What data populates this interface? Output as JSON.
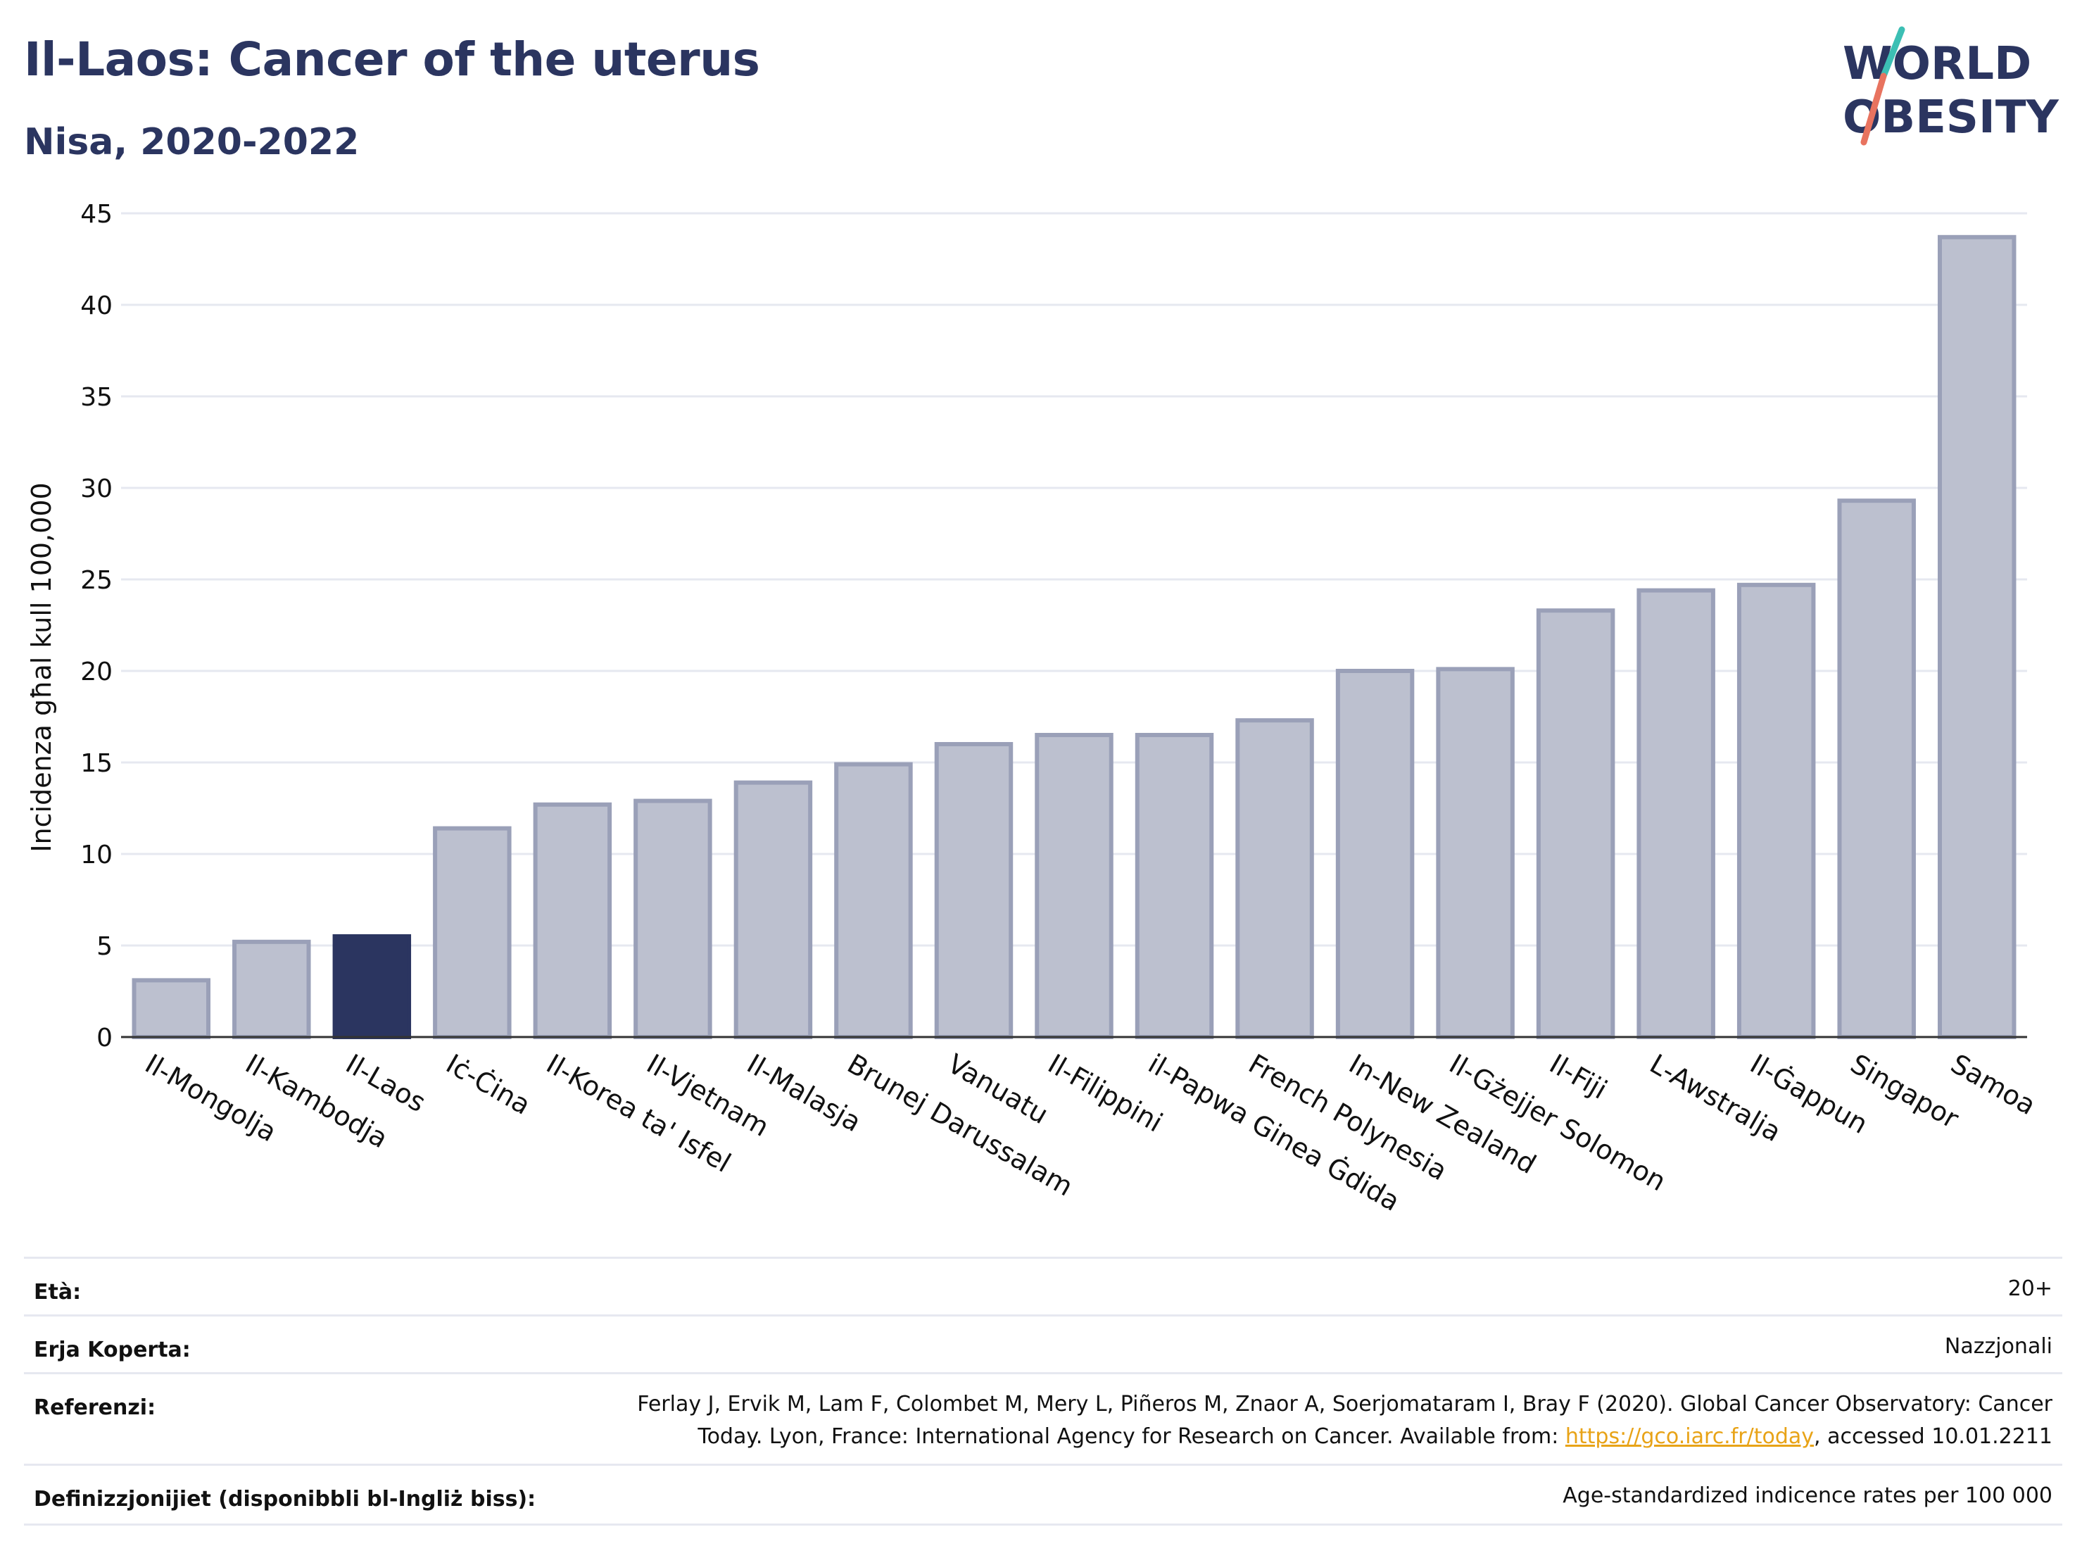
{
  "title": "Il-Laos: Cancer of the uterus",
  "subtitle": "Nisa, 2020-2022",
  "logo": {
    "line1": "WORLD",
    "line2": "OBESITY"
  },
  "colors": {
    "highlight": "#2b3560",
    "bar_fill": "#bcc0cf",
    "bar_stroke": "#9aa0b8",
    "grid": "#e6e8f0",
    "accent_teal": "#3cbfb4",
    "accent_coral": "#e8735f",
    "link": "#e8a317"
  },
  "chart_data": {
    "type": "bar",
    "ylabel": "Incidenza għal kull 100,000",
    "ylim": [
      0,
      45
    ],
    "yticks": [
      0,
      5,
      10,
      15,
      20,
      25,
      30,
      35,
      40,
      45
    ],
    "grid": true,
    "highlight": "Il-Laos",
    "categories": [
      "Il-Mongolja",
      "Il-Kambodja",
      "Il-Laos",
      "Iċ-Ċina",
      "Il-Korea ta' Isfel",
      "Il-Vjetnam",
      "Il-Malasja",
      "Brunej Darussalam",
      "Vanuatu",
      "Il-Filippini",
      "il-Papwa Ginea Ġdida",
      "French Polynesia",
      "In-New Zealand",
      "Il-Gżejjer Solomon",
      "Il-Fiji",
      "L-Awstralja",
      "Il-Ġappun",
      "Singapor",
      "Samoa"
    ],
    "values": [
      3.1,
      5.2,
      5.5,
      11.4,
      12.7,
      12.9,
      13.9,
      14.9,
      16.0,
      16.5,
      16.5,
      17.3,
      20.0,
      20.1,
      23.3,
      24.4,
      24.7,
      29.3,
      43.7
    ]
  },
  "info": {
    "age_label": "Età:",
    "age_value": "20+",
    "area_label": "Erja Koperta:",
    "area_value": "Nazzjonali",
    "ref_label": "Referenzi:",
    "ref_line1": "Ferlay J, Ervik M, Lam F, Colombet M, Mery L, Piñeros M, Znaor A, Soerjomataram I, Bray F (2020). Global Cancer Observatory: Cancer",
    "ref_line2_pre": "Today. Lyon, France: International Agency for Research on Cancer. Available from: ",
    "ref_link": "https://gco.iarc.fr/today",
    "ref_line2_post": ", accessed 10.01.2211",
    "def_label": "Definizzjonijiet (disponibbli bl-Ingliż biss):",
    "def_value": "Age-standardized indicence rates per 100 000"
  }
}
